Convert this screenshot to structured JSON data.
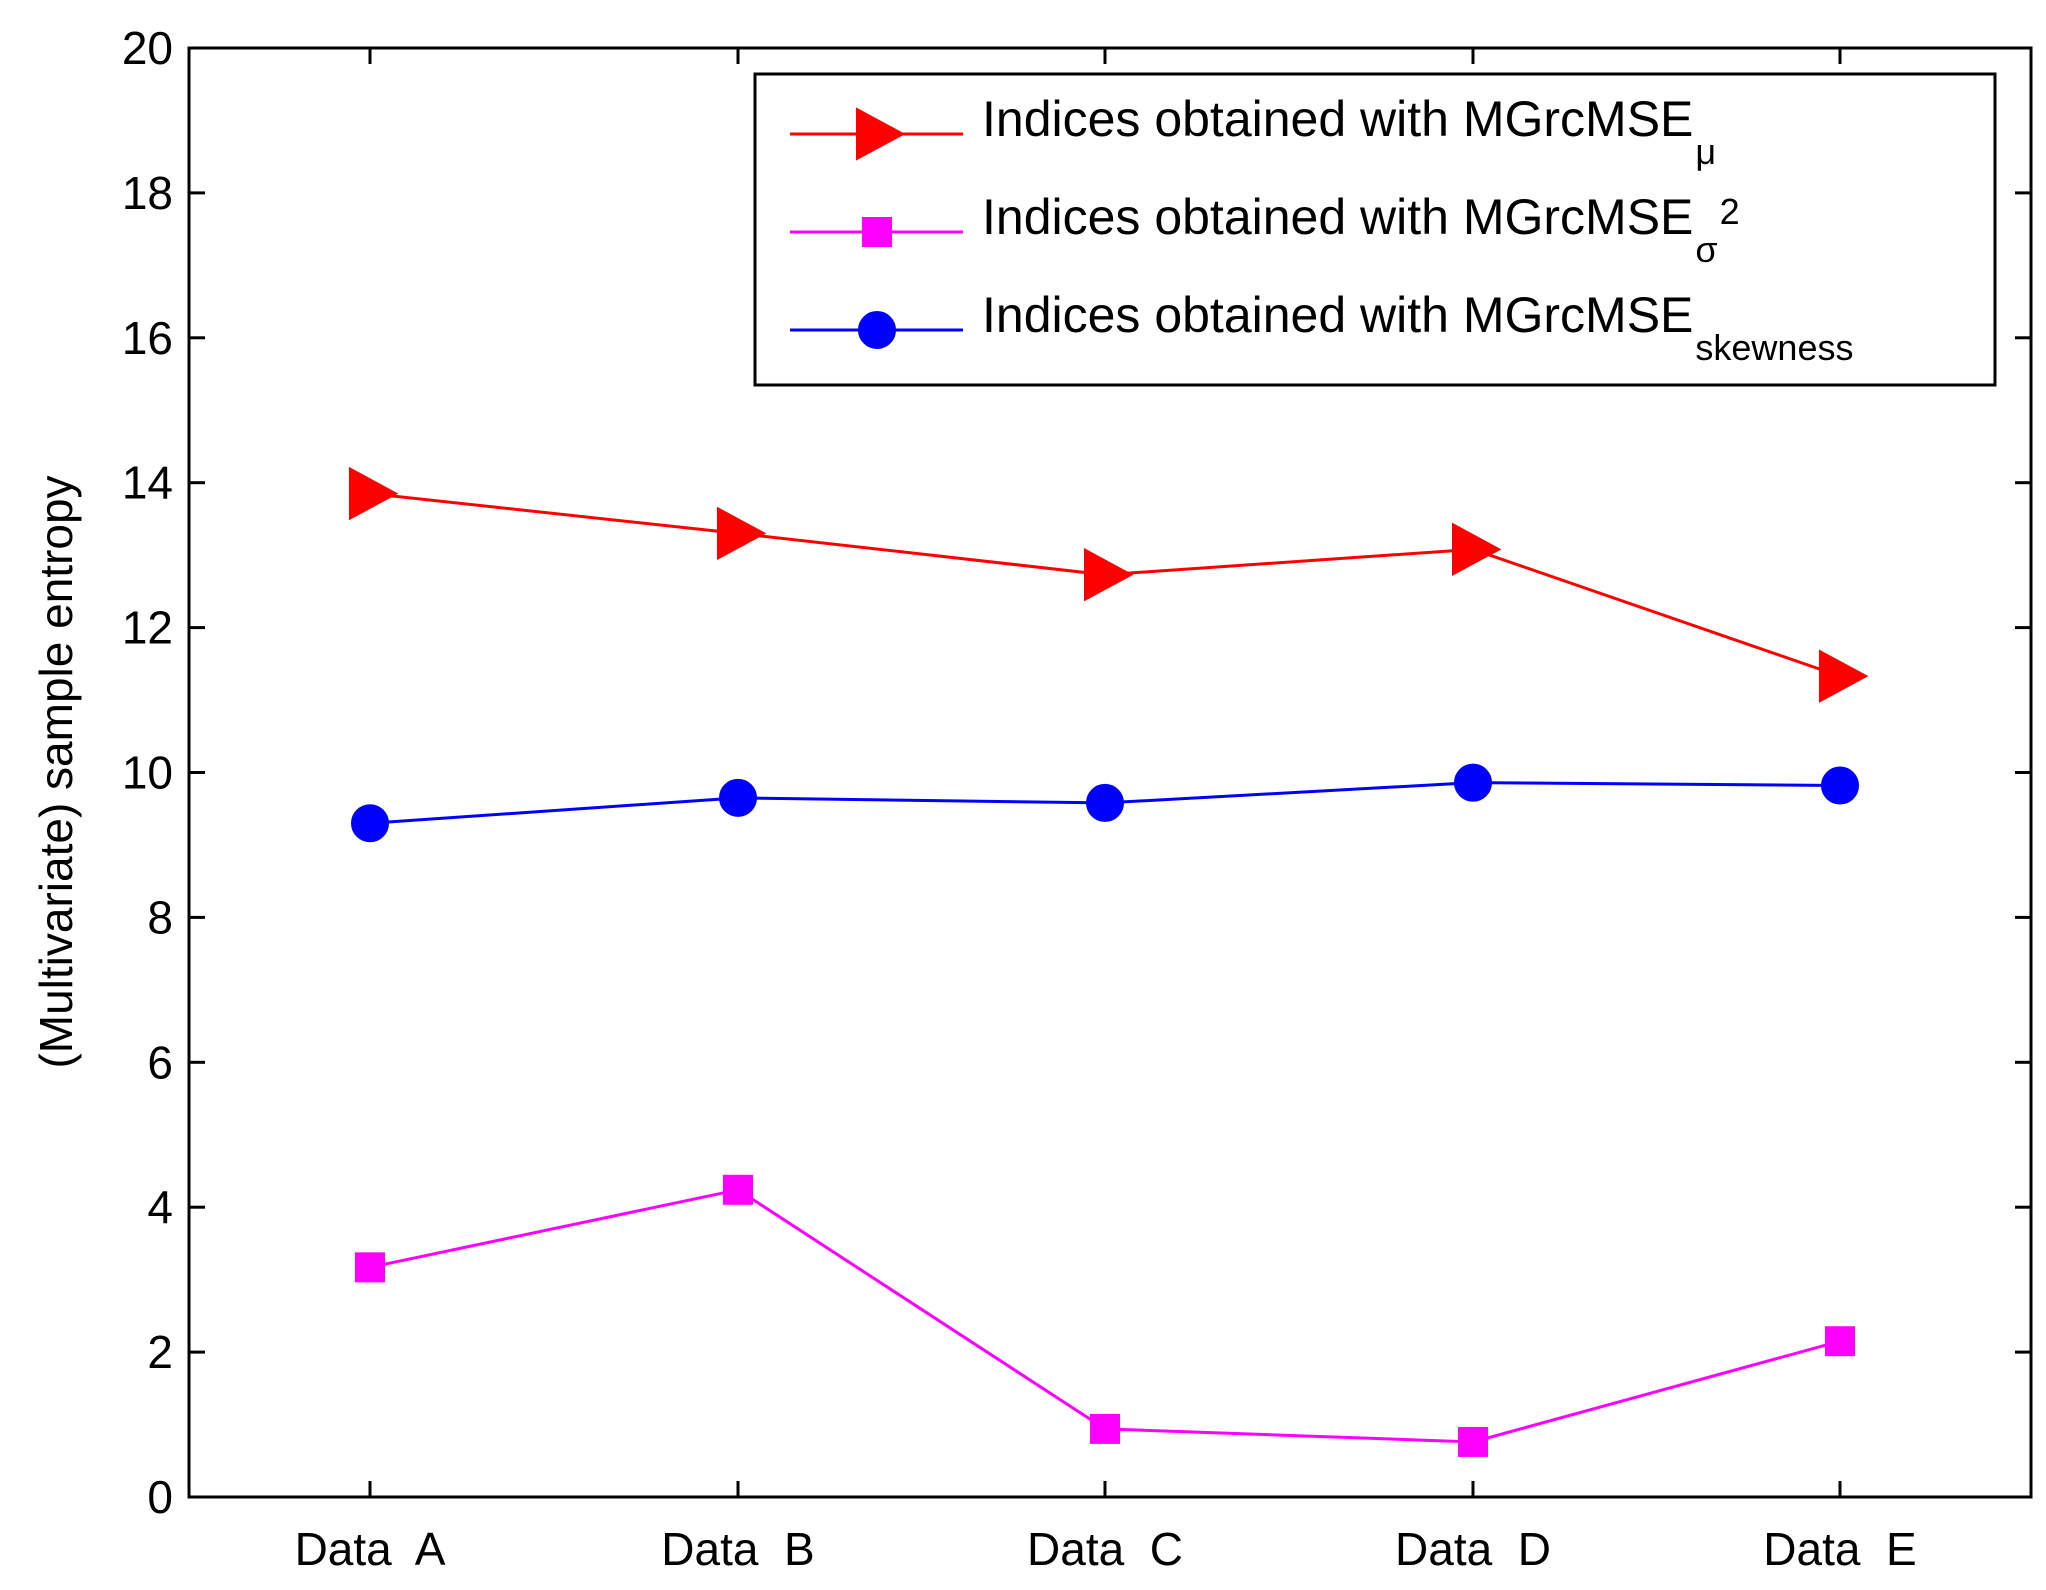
{
  "chart_data": {
    "type": "line",
    "title": "",
    "xlabel": "",
    "ylabel": "(Multivariate) sample entropy",
    "categories": [
      "Data  A",
      "Data  B",
      "Data  C",
      "Data  D",
      "Data  E"
    ],
    "ylim": [
      0,
      20
    ],
    "yticks": [
      0,
      2,
      4,
      6,
      8,
      10,
      12,
      14,
      16,
      18,
      20
    ],
    "ytick_labels": [
      "0",
      "2",
      "4",
      "6",
      "8",
      "10",
      "12",
      "14",
      "16",
      "18",
      "20"
    ],
    "grid": false,
    "legend_position": "top-right",
    "series": [
      {
        "name": "Indices obtained with MGrcMSE",
        "label_main": "Indices obtained with MGrcMSE",
        "label_sub": "μ",
        "label_sup": "",
        "color": "#ff0000",
        "marker": "triangle-right",
        "values": [
          13.85,
          13.3,
          12.73,
          13.08,
          11.33
        ]
      },
      {
        "name": "Indices obtained with MGrcMSE",
        "label_main": "Indices obtained with MGrcMSE",
        "label_sub": "σ",
        "label_sup": "2",
        "color": "#ff00ff",
        "marker": "square",
        "values": [
          3.17,
          4.24,
          0.94,
          0.76,
          2.15
        ]
      },
      {
        "name": "Indices obtained with MGrcMSE",
        "label_main": "Indices obtained with MGrcMSE",
        "label_sub": "skewness",
        "label_sup": "",
        "color": "#0000ff",
        "marker": "circle",
        "values": [
          9.3,
          9.65,
          9.58,
          9.86,
          9.82
        ]
      }
    ]
  }
}
